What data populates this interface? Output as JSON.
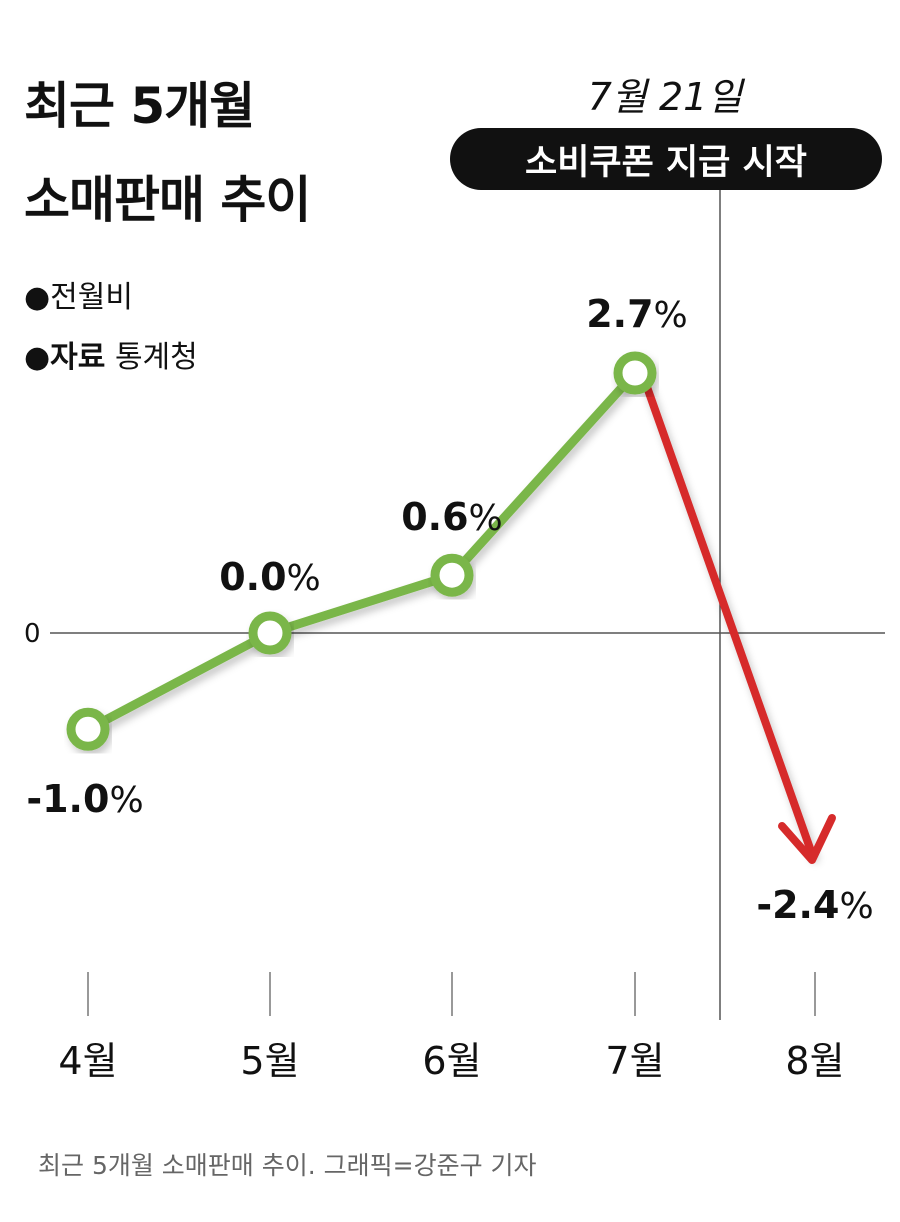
{
  "title_line1": "최근 5개월",
  "title_line2": "소매판매 추이",
  "meta_basis": "●전월비",
  "meta_source_label": "●자료",
  "meta_source_value": "통계청",
  "event_date": "7월 21일",
  "event_label": "소비쿠폰 지급 시작",
  "caption": "최근 5개월 소매판매 추이. 그래픽=강준구 기자",
  "colors": {
    "up_line": "#7ab648",
    "down_arrow": "#d62b2b",
    "text": "#111111"
  },
  "chart_data": {
    "type": "line",
    "title": "최근 5개월 소매판매 추이",
    "categories": [
      "4월",
      "5월",
      "6월",
      "7월",
      "8월"
    ],
    "series": [
      {
        "values": [
          -1.0,
          0.0,
          0.6,
          2.7,
          -2.4
        ],
        "labels": [
          "-1.0%",
          "0.0%",
          "0.6%",
          "2.7%",
          "-2.4%"
        ]
      }
    ],
    "zero_label": "0",
    "annotation": {
      "position_between": [
        "7월",
        "8월"
      ],
      "date": "7월 21일",
      "label": "소비쿠폰 지급 시작"
    },
    "grid": false
  }
}
